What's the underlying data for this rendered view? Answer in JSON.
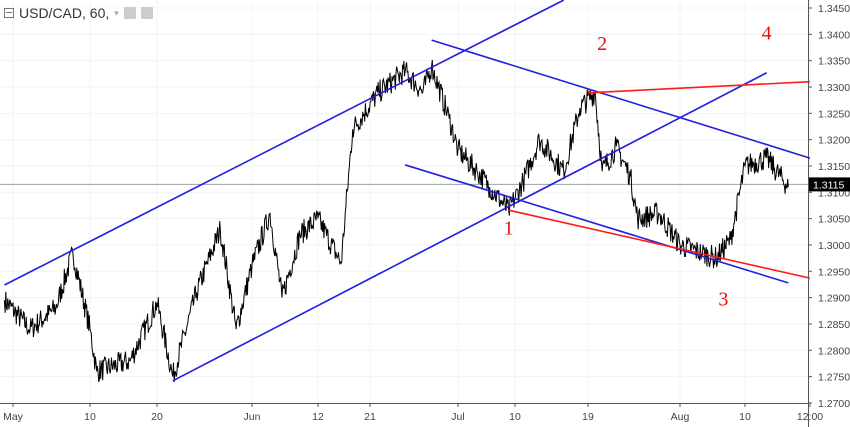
{
  "header": {
    "symbol_label": "USD/CAD, 60,",
    "icons": [
      "collapse-icon",
      "chevron-down-icon",
      "eye-icon",
      "gear-icon"
    ]
  },
  "chart_data": {
    "type": "line",
    "title": "USD/CAD, 60,",
    "ylim": [
      1.2685,
      1.3465
    ],
    "y_ticks": [
      "1.3450",
      "1.3400",
      "1.3350",
      "1.3300",
      "1.3250",
      "1.3200",
      "1.3150",
      "1.3100",
      "1.3050",
      "1.3000",
      "1.2950",
      "1.2900",
      "1.2850",
      "1.2800",
      "1.2750",
      "1.2700"
    ],
    "x_ticks": [
      {
        "label": "May",
        "date": "2018-05-01"
      },
      {
        "label": "10",
        "date": "2018-05-10"
      },
      {
        "label": "20",
        "date": "2018-05-20"
      },
      {
        "label": "Jun",
        "date": "2018-06-01"
      },
      {
        "label": "12",
        "date": "2018-06-12"
      },
      {
        "label": "21",
        "date": "2018-06-21"
      },
      {
        "label": "Jul",
        "date": "2018-07-01"
      },
      {
        "label": "10",
        "date": "2018-07-10"
      },
      {
        "label": "19",
        "date": "2018-07-19"
      },
      {
        "label": "Aug",
        "date": "2018-08-01"
      },
      {
        "label": "10",
        "date": "2018-08-10"
      },
      {
        "label": "12:00",
        "date": "2018-08-13"
      }
    ],
    "current_price": "1.3115",
    "grid": true,
    "colors": {
      "price": "#000000",
      "channel": "#1f1fe0",
      "support_resistance": "#ff1a1a",
      "label": "#e01010",
      "current_price_bg": "#000000"
    },
    "series": [
      {
        "points": [
          [
            "2018-04-30",
            1.2895
          ],
          [
            "2018-05-03",
            1.284
          ],
          [
            "2018-05-06",
            1.288
          ],
          [
            "2018-05-08",
            1.2985
          ],
          [
            "2018-05-10",
            1.284
          ],
          [
            "2018-05-11",
            1.276
          ],
          [
            "2018-05-16",
            1.278
          ],
          [
            "2018-05-20",
            1.289
          ],
          [
            "2018-05-22",
            1.275
          ],
          [
            "2018-05-25",
            1.291
          ],
          [
            "2018-05-28",
            1.303
          ],
          [
            "2018-05-30",
            1.284
          ],
          [
            "2018-06-01",
            1.296
          ],
          [
            "2018-06-04",
            1.306
          ],
          [
            "2018-06-06",
            1.29
          ],
          [
            "2018-06-09",
            1.302
          ],
          [
            "2018-06-12",
            1.305
          ],
          [
            "2018-06-16",
            1.2965
          ],
          [
            "2018-06-18",
            1.322
          ],
          [
            "2018-06-22",
            1.329
          ],
          [
            "2018-06-25",
            1.333
          ],
          [
            "2018-06-27",
            1.329
          ],
          [
            "2018-06-28",
            1.334
          ],
          [
            "2018-06-30",
            1.324
          ],
          [
            "2018-07-01",
            1.318
          ],
          [
            "2018-07-04",
            1.314
          ],
          [
            "2018-07-06",
            1.311
          ],
          [
            "2018-07-09",
            1.3065
          ],
          [
            "2018-07-11",
            1.312
          ],
          [
            "2018-07-13",
            1.32
          ],
          [
            "2018-07-16",
            1.314
          ],
          [
            "2018-07-18",
            1.326
          ],
          [
            "2018-07-20",
            1.329
          ],
          [
            "2018-07-21",
            1.314
          ],
          [
            "2018-07-23",
            1.3187
          ],
          [
            "2018-07-25",
            1.313
          ],
          [
            "2018-07-26",
            1.305
          ],
          [
            "2018-07-29",
            1.306
          ],
          [
            "2018-08-01",
            1.3
          ],
          [
            "2018-08-04",
            1.2985
          ],
          [
            "2018-08-06",
            1.2975
          ],
          [
            "2018-08-08",
            1.301
          ],
          [
            "2018-08-10",
            1.315
          ],
          [
            "2018-08-11",
            1.3165
          ],
          [
            "2018-08-12",
            1.311
          ]
        ]
      }
    ],
    "trendlines": [
      {
        "kind": "channel",
        "from": [
          "2018-04-30",
          1.2924
        ],
        "to": [
          "2018-07-16",
          1.3465
        ]
      },
      {
        "kind": "channel",
        "from": [
          "2018-05-22",
          1.2742
        ],
        "to": [
          "2018-08-11",
          1.3327
        ]
      },
      {
        "kind": "channel",
        "from": [
          "2018-06-28",
          1.3389
        ],
        "to": [
          "2018-08-13",
          1.3165
        ]
      },
      {
        "kind": "channel",
        "from": [
          "2018-06-25",
          1.3152
        ],
        "to": [
          "2018-08-12",
          1.2928
        ]
      },
      {
        "kind": "support_resistance",
        "from": [
          "2018-07-09",
          1.3066
        ],
        "to": [
          "2018-08-13",
          1.2937
        ]
      },
      {
        "kind": "support_resistance",
        "from": [
          "2018-07-19",
          1.3289
        ],
        "to": [
          "2018-08-13",
          1.331
        ]
      }
    ],
    "annotations": [
      {
        "text": "1",
        "at": [
          "2018-07-09",
          1.302
        ]
      },
      {
        "text": "2",
        "at": [
          "2018-07-21",
          1.337
        ]
      },
      {
        "text": "3",
        "at": [
          "2018-08-07",
          1.2885
        ]
      },
      {
        "text": "4",
        "at": [
          "2018-08-11",
          1.339
        ]
      }
    ]
  }
}
